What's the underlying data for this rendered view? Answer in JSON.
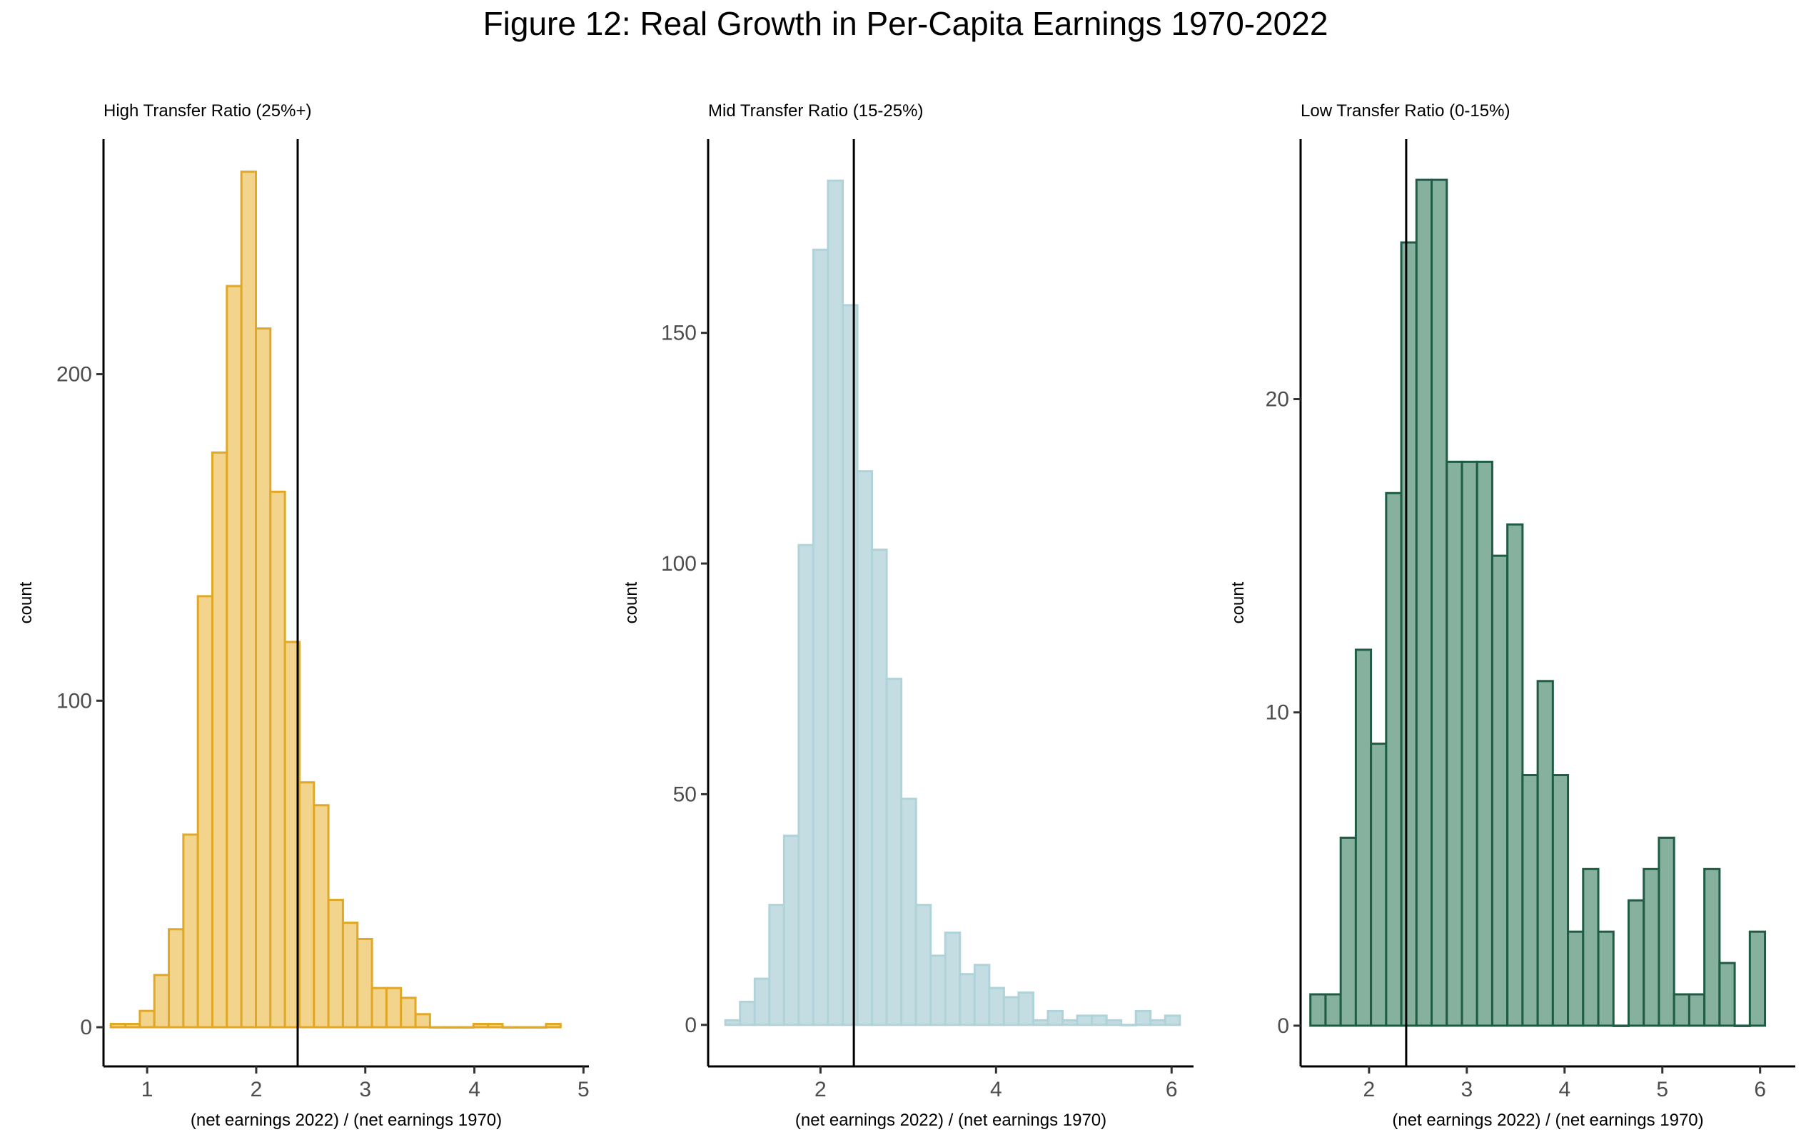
{
  "title": "Figure 12: Real Growth in Per-Capita Earnings 1970-2022",
  "chart_data": [
    {
      "type": "bar",
      "subtype": "histogram",
      "title": "High Transfer Ratio (25%+)",
      "xlabel": "(net earnings 2022) / (net earnings 1970)",
      "ylabel": "count",
      "xlim": [
        0.6,
        5.05
      ],
      "ylim": [
        -12,
        272
      ],
      "xticks": [
        1,
        2,
        3,
        4,
        5
      ],
      "yticks": [
        0,
        100,
        200
      ],
      "bin_width": 0.133,
      "bin_start": 0.667,
      "values": [
        1,
        1,
        5,
        16,
        30,
        59,
        132,
        176,
        227,
        262,
        214,
        164,
        118,
        75,
        68,
        39,
        32,
        27,
        12,
        12,
        9,
        4,
        0,
        0,
        0,
        1,
        1,
        0,
        0,
        0,
        1
      ],
      "reference_line_x": 2.38,
      "fill": "#f2d48c",
      "stroke": "#e0a826"
    },
    {
      "type": "bar",
      "subtype": "histogram",
      "title": "Mid Transfer Ratio (15-25%)",
      "xlabel": "(net earnings 2022) / (net earnings 1970)",
      "ylabel": "count",
      "xlim": [
        0.72,
        6.25
      ],
      "ylim": [
        -9,
        192
      ],
      "xticks": [
        2,
        4,
        6
      ],
      "yticks": [
        0,
        50,
        100,
        150
      ],
      "bin_width": 0.167,
      "bin_start": 0.917,
      "values": [
        1,
        5,
        10,
        26,
        41,
        104,
        168,
        183,
        156,
        120,
        103,
        75,
        49,
        26,
        15,
        20,
        11,
        13,
        8,
        6,
        7,
        1,
        3,
        1,
        2,
        2,
        1,
        0,
        3,
        1,
        2
      ],
      "reference_line_x": 2.38,
      "fill": "#c3dde2",
      "stroke": "#b0d3da"
    },
    {
      "type": "bar",
      "subtype": "histogram",
      "title": "Low Transfer Ratio (0-15%)",
      "xlabel": "(net earnings 2022) / (net earnings 1970)",
      "ylabel": "count",
      "xlim": [
        1.3,
        6.36
      ],
      "ylim": [
        -1.3,
        28.3
      ],
      "xticks": [
        2,
        3,
        4,
        5,
        6
      ],
      "yticks": [
        0,
        10,
        20
      ],
      "bin_width": 0.155,
      "bin_start": 1.4,
      "values": [
        1,
        1,
        6,
        12,
        9,
        17,
        25,
        27,
        27,
        18,
        18,
        18,
        15,
        16,
        8,
        11,
        8,
        3,
        5,
        3,
        0,
        4,
        5,
        6,
        1,
        1,
        5,
        2,
        0,
        3
      ],
      "reference_line_x": 2.38,
      "fill": "#86b19f",
      "stroke": "#1e5c45"
    }
  ]
}
